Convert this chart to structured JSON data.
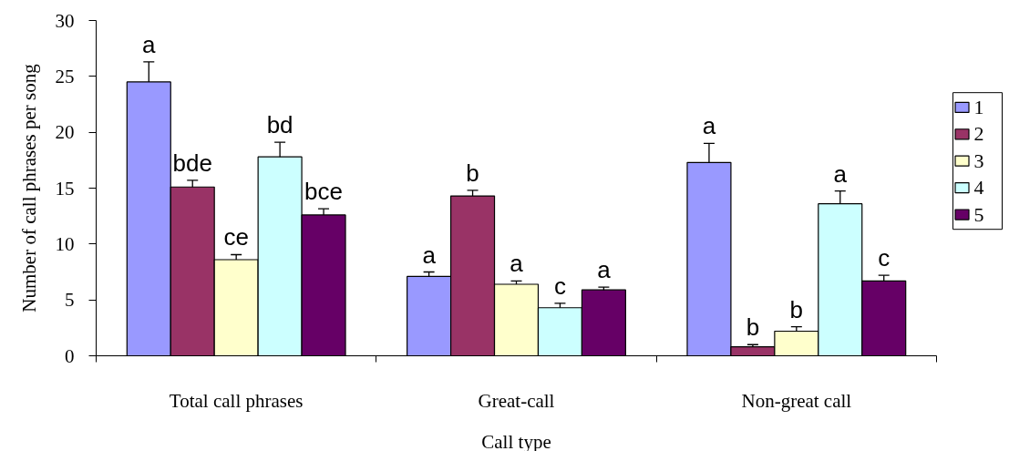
{
  "chart_data": {
    "type": "bar",
    "categories": [
      "Total call phrases",
      "Great-call",
      "Non-great call"
    ],
    "xlabel": "Call type",
    "ylabel": "Number of call phrases per song",
    "ylim": [
      0,
      30
    ],
    "yticks": [
      0,
      5,
      10,
      15,
      20,
      25,
      30
    ],
    "grid": false,
    "legend": "right",
    "series": [
      {
        "name": "1",
        "color": "#9999ff",
        "values": [
          24.5,
          7.1,
          17.3
        ],
        "errors": [
          1.8,
          0.4,
          1.7
        ],
        "value_labels": [
          "a",
          "a",
          "a"
        ]
      },
      {
        "name": "2",
        "color": "#993366",
        "values": [
          15.1,
          14.3,
          0.8
        ],
        "errors": [
          0.6,
          0.5,
          0.2
        ],
        "value_labels": [
          "bde",
          "b",
          "b"
        ]
      },
      {
        "name": "3",
        "color": "#ffffcc",
        "values": [
          8.6,
          6.4,
          2.2
        ],
        "errors": [
          0.45,
          0.3,
          0.4
        ],
        "value_labels": [
          "ce",
          "a",
          "b"
        ]
      },
      {
        "name": "4",
        "color": "#ccffff",
        "values": [
          17.8,
          4.3,
          13.6
        ],
        "errors": [
          1.3,
          0.4,
          1.15
        ],
        "value_labels": [
          "bd",
          "c",
          "a"
        ]
      },
      {
        "name": "5",
        "color": "#660066",
        "values": [
          12.6,
          5.9,
          6.7
        ],
        "errors": [
          0.55,
          0.25,
          0.5
        ],
        "value_labels": [
          "bce",
          "a",
          "c"
        ]
      }
    ]
  }
}
